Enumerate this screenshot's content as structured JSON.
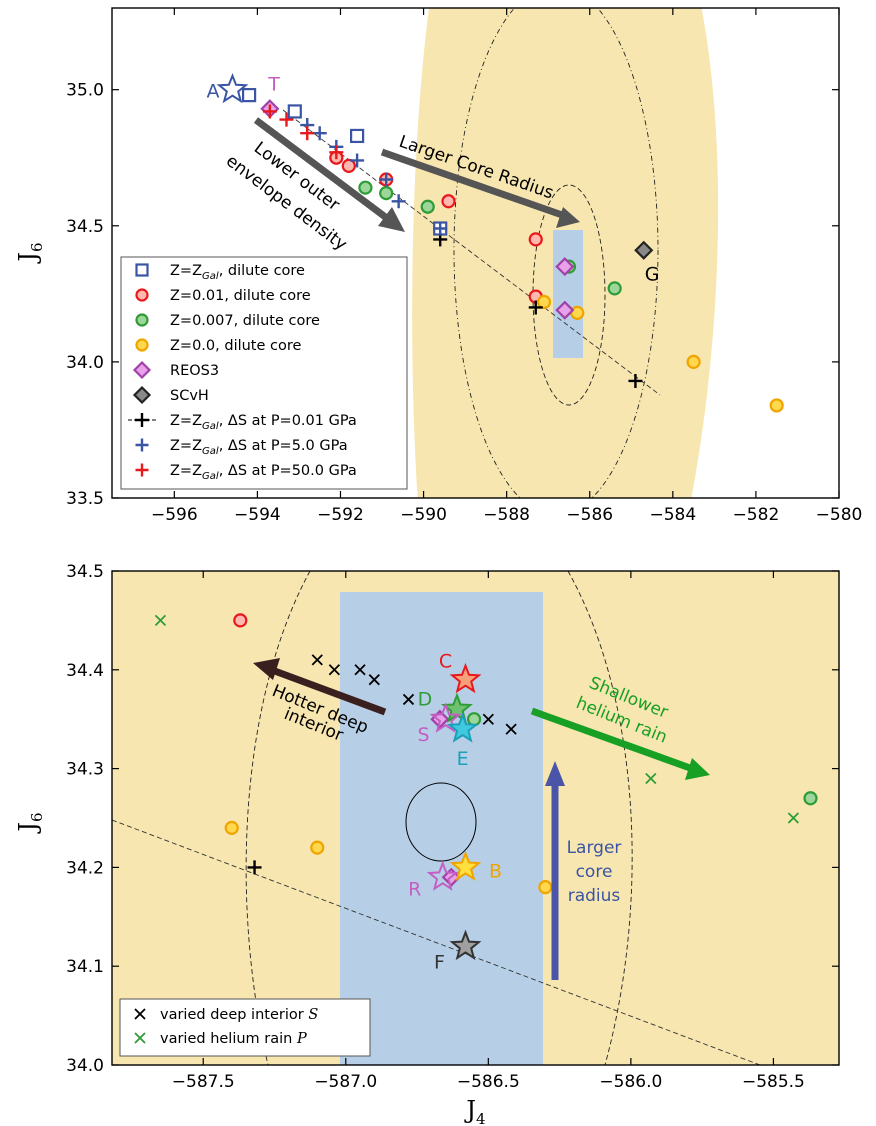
{
  "chart_data": [
    {
      "type": "scatter",
      "xlabel": "",
      "ylabel": "J",
      "ylabel_sub": "6",
      "xlim": [
        -597.5,
        -580
      ],
      "ylim": [
        33.5,
        35.3
      ],
      "xticks": [
        -596,
        -594,
        -592,
        -590,
        -588,
        -586,
        -584,
        -582,
        -580
      ],
      "xtick_labels": [
        "−596",
        "−594",
        "−592",
        "−590",
        "−588",
        "−586",
        "−584",
        "−582",
        "−580"
      ],
      "yticks": [
        33.5,
        34.0,
        34.5,
        35.0
      ],
      "ytick_labels": [
        "33.5",
        "34.0",
        "34.5",
        "35.0"
      ],
      "grid": false,
      "legend_position": "lower-left",
      "colors": {
        "dilute_gal": "#3a55a4",
        "z001": "#e8191c",
        "z0007": "#2e9d37",
        "z0": "#ffc000",
        "reos": "#c45ec4",
        "scvh": "#888888",
        "ds001": "#000000",
        "ds5": "#3a55a4",
        "ds50": "#e8191c",
        "band": "#f7e6b0",
        "box": "#b7cfe6",
        "arrow": "#555555"
      },
      "legend": [
        {
          "label": "Z=Z",
          "sub": "Gal",
          "suffix": ", dilute core",
          "marker": "square",
          "color": "#3a55a4"
        },
        {
          "label": "Z=0.01, dilute core",
          "sub": "",
          "suffix": "",
          "marker": "circle",
          "color": "#e8191c",
          "fill": "#ffb8b0"
        },
        {
          "label": "Z=0.007, dilute core",
          "sub": "",
          "suffix": "",
          "marker": "circle",
          "color": "#2e9d37",
          "fill": "#9cd69a"
        },
        {
          "label": "Z=0.0, dilute core",
          "sub": "",
          "suffix": "",
          "marker": "circle",
          "color": "#f0a400",
          "fill": "#ffd84d"
        },
        {
          "label": "REOS3",
          "sub": "",
          "suffix": "",
          "marker": "diamond",
          "color": "#a040a8",
          "fill": "#e8a0e8"
        },
        {
          "label": "SCvH",
          "sub": "",
          "suffix": "",
          "marker": "diamond",
          "color": "#222222",
          "fill": "#888888"
        },
        {
          "label": "Z=Z",
          "sub": "Gal",
          "suffix": ", ΔS at P=0.01 GPa",
          "marker": "plus-dashed",
          "color": "#000000"
        },
        {
          "label": "Z=Z",
          "sub": "Gal",
          "suffix": ", ΔS at P=5.0 GPa",
          "marker": "plus",
          "color": "#3a55a4"
        },
        {
          "label": "Z=Z",
          "sub": "Gal",
          "suffix": ", ΔS at P=50.0 GPa",
          "marker": "plus",
          "color": "#e8191c"
        }
      ],
      "series": [
        {
          "name": "Z=Z_Gal, dilute core",
          "marker": "square",
          "points": [
            [
              -594.2,
              34.98
            ],
            [
              -593.1,
              34.92
            ],
            [
              -591.6,
              34.83
            ],
            [
              -589.6,
              34.49
            ]
          ]
        },
        {
          "name": "Z=0.01, dilute core",
          "marker": "circle",
          "points": [
            [
              -592.1,
              34.75
            ],
            [
              -591.8,
              34.72
            ],
            [
              -590.9,
              34.67
            ],
            [
              -589.4,
              34.59
            ],
            [
              -587.3,
              34.45
            ],
            [
              -587.3,
              34.24
            ]
          ]
        },
        {
          "name": "Z=0.007, dilute core",
          "marker": "circle",
          "points": [
            [
              -591.4,
              34.64
            ],
            [
              -590.9,
              34.62
            ],
            [
              -589.9,
              34.57
            ],
            [
              -586.5,
              34.35
            ],
            [
              -585.4,
              34.27
            ]
          ]
        },
        {
          "name": "Z=0.0, dilute core",
          "marker": "circle",
          "points": [
            [
              -587.1,
              34.22
            ],
            [
              -586.3,
              34.18
            ],
            [
              -583.5,
              34.0
            ],
            [
              -581.5,
              33.84
            ]
          ]
        },
        {
          "name": "REOS3",
          "marker": "diamond",
          "points": [
            [
              -593.7,
              34.93
            ],
            [
              -586.6,
              34.35
            ],
            [
              -586.6,
              34.19
            ]
          ]
        },
        {
          "name": "SCvH",
          "marker": "diamond",
          "points": [
            [
              -584.7,
              34.41
            ]
          ]
        },
        {
          "name": "ΔS at P=0.01 GPa",
          "marker": "plus",
          "points": [
            [
              -589.6,
              34.45
            ],
            [
              -587.3,
              34.2
            ],
            [
              -584.9,
              33.93
            ]
          ]
        },
        {
          "name": "ΔS at P=5.0 GPa",
          "marker": "plus",
          "points": [
            [
              -592.8,
              34.87
            ],
            [
              -592.5,
              34.84
            ],
            [
              -592.1,
              34.79
            ],
            [
              -591.6,
              34.74
            ],
            [
              -590.9,
              34.67
            ],
            [
              -590.6,
              34.59
            ],
            [
              -589.6,
              34.49
            ]
          ]
        },
        {
          "name": "ΔS at P=50.0 GPa",
          "marker": "plus",
          "points": [
            [
              -593.7,
              34.92
            ],
            [
              -593.3,
              34.89
            ],
            [
              -592.8,
              34.84
            ],
            [
              -592.1,
              34.77
            ]
          ]
        }
      ],
      "stars": [
        {
          "label": "A",
          "x": -594.6,
          "y": 35.0,
          "color": "#3a55a4"
        }
      ],
      "text_labels": [
        {
          "text": "T",
          "x": -593.6,
          "y": 34.99,
          "color": "#c45ec4"
        },
        {
          "text": "G",
          "x": -584.5,
          "y": 34.38,
          "color": "#000000"
        }
      ],
      "annotations": [
        {
          "lines": [
            "Lower outer",
            "envelope density"
          ],
          "color": "#000000"
        },
        {
          "lines": [
            "Larger Core Radius"
          ],
          "color": "#000000"
        }
      ]
    },
    {
      "type": "scatter",
      "xlabel": "J",
      "xlabel_sub": "4",
      "ylabel": "J",
      "ylabel_sub": "6",
      "xlim": [
        -587.82,
        -585.27
      ],
      "ylim": [
        34.0,
        34.5
      ],
      "xticks": [
        -587.5,
        -587.0,
        -586.5,
        -586.0,
        -585.5
      ],
      "xtick_labels": [
        "−587.5",
        "−587.0",
        "−586.5",
        "−586.0",
        "−585.5"
      ],
      "yticks": [
        34.0,
        34.1,
        34.2,
        34.3,
        34.4,
        34.5
      ],
      "ytick_labels": [
        "34.0",
        "34.1",
        "34.2",
        "34.3",
        "34.4",
        "34.5"
      ],
      "grid": false,
      "legend_position": "lower-left",
      "legend": [
        {
          "label": "varied deep interior ",
          "italic": "S",
          "color": "#000000"
        },
        {
          "label": "varied helium rain ",
          "italic": "P",
          "color": "#2e9d37"
        }
      ],
      "series": [
        {
          "name": "varied deep interior S",
          "marker": "x",
          "points": [
            [
              -587.1,
              34.41
            ],
            [
              -587.04,
              34.4
            ],
            [
              -586.95,
              34.4
            ],
            [
              -586.9,
              34.39
            ],
            [
              -586.78,
              34.37
            ],
            [
              -586.5,
              34.35
            ],
            [
              -586.42,
              34.34
            ]
          ]
        },
        {
          "name": "varied helium rain P",
          "marker": "x",
          "points": [
            [
              -587.65,
              34.45
            ],
            [
              -585.93,
              34.29
            ],
            [
              -585.43,
              34.25
            ]
          ]
        },
        {
          "name": "Z=0.01",
          "marker": "circle",
          "points": [
            [
              -587.37,
              34.45
            ]
          ]
        },
        {
          "name": "Z=0.007",
          "marker": "circle",
          "points": [
            [
              -586.55,
              34.35
            ],
            [
              -585.37,
              34.27
            ]
          ]
        },
        {
          "name": "Z=0.0",
          "marker": "circle",
          "points": [
            [
              -587.4,
              34.24
            ],
            [
              -587.1,
              34.22
            ],
            [
              -586.3,
              34.18
            ]
          ]
        },
        {
          "name": "REOS3",
          "marker": "diamond",
          "points": [
            [
              -586.67,
              34.35
            ],
            [
              -586.63,
              34.19
            ]
          ]
        },
        {
          "name": "ΔS at P=0.01 GPa",
          "marker": "plus",
          "points": [
            [
              -587.32,
              34.2
            ]
          ]
        }
      ],
      "stars": [
        {
          "label": "C",
          "x": -586.58,
          "y": 34.39,
          "color": "#e8191c",
          "fill": "#f8a07a"
        },
        {
          "label": "D",
          "x": -586.61,
          "y": 34.36,
          "color": "#2e9d37",
          "fill": "#6fc070"
        },
        {
          "label": "S",
          "x": -586.65,
          "y": 34.35,
          "color": "#c45ec4",
          "fill": ""
        },
        {
          "label": "E",
          "x": -586.59,
          "y": 34.34,
          "color": "#1aa0b8",
          "fill": "#40c8e0"
        },
        {
          "label": "B",
          "x": -586.58,
          "y": 34.2,
          "color": "#f0a400",
          "fill": "#ffe040"
        },
        {
          "label": "R",
          "x": -586.66,
          "y": 34.19,
          "color": "#c45ec4",
          "fill": ""
        },
        {
          "label": "F",
          "x": -586.58,
          "y": 34.12,
          "color": "#333333",
          "fill": "#a0a0a0"
        }
      ],
      "annotations": [
        {
          "lines": [
            "Hotter deep",
            "interior"
          ],
          "color": "#000000"
        },
        {
          "lines": [
            "Shallower",
            "helium rain"
          ],
          "color": "#2e9d37"
        },
        {
          "lines": [
            "Larger",
            "core",
            "radius"
          ],
          "color": "#3a55a4"
        }
      ]
    }
  ]
}
